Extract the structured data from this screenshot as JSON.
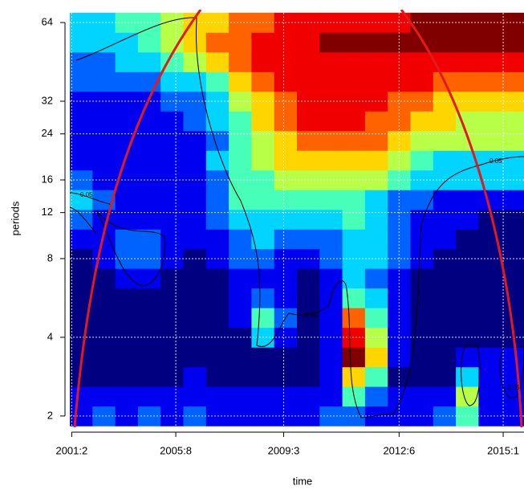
{
  "chart_data": {
    "type": "heatmap",
    "xlabel": "time",
    "ylabel": "periods",
    "xlim": [
      0,
      240
    ],
    "xticks": [
      {
        "value": 1,
        "label": "2001:2"
      },
      {
        "value": 56,
        "label": "2005:8"
      },
      {
        "value": 113,
        "label": "2009:3"
      },
      {
        "value": 174,
        "label": "2012:6"
      },
      {
        "value": 229,
        "label": "2015:1"
      }
    ],
    "ylim": [
      1.81,
      71.7
    ],
    "log_y": true,
    "log_base": 2,
    "yticks": [
      2,
      4,
      8,
      12,
      16,
      24,
      32,
      64
    ],
    "grid": true,
    "colormap": "jet",
    "zlim": [
      0,
      9
    ],
    "contour_label": "0.05",
    "x": [
      6,
      18,
      30,
      42,
      54,
      66,
      78,
      90,
      102,
      114,
      126,
      138,
      150,
      162,
      174,
      186,
      198,
      210,
      222,
      234
    ],
    "y": [
      2,
      2.38,
      2.83,
      3.36,
      4,
      4.76,
      5.66,
      6.73,
      8,
      9.51,
      11.31,
      13.45,
      16,
      19.03,
      22.63,
      26.91,
      32,
      38.05,
      45.25,
      53.82,
      64
    ],
    "z": [
      [
        1,
        2,
        1,
        2,
        1,
        2,
        1,
        1,
        1,
        1,
        1,
        2,
        2,
        1,
        1,
        1,
        2,
        4,
        1,
        1
      ],
      [
        1,
        1,
        1,
        1,
        1,
        1,
        1,
        1,
        1,
        1,
        1,
        1,
        4,
        2,
        1,
        1,
        1,
        5,
        1,
        1
      ],
      [
        0,
        0,
        0,
        0,
        0,
        1,
        0,
        0,
        0,
        0,
        0,
        1,
        6,
        4,
        0,
        0,
        0,
        3,
        1,
        1
      ],
      [
        0,
        0,
        0,
        0,
        0,
        0,
        0,
        0,
        0,
        0,
        0,
        1,
        9,
        6,
        1,
        0,
        0,
        1,
        1,
        1
      ],
      [
        0,
        0,
        0,
        0,
        0,
        0,
        0,
        0,
        3,
        1,
        0,
        1,
        8,
        5,
        1,
        0,
        0,
        0,
        0,
        0
      ],
      [
        0,
        0,
        0,
        0,
        0,
        0,
        0,
        1,
        4,
        2,
        0,
        1,
        7,
        4,
        1,
        0,
        0,
        0,
        0,
        0
      ],
      [
        0,
        0,
        0,
        0,
        0,
        0,
        0,
        1,
        2,
        1,
        0,
        1,
        4,
        3,
        1,
        0,
        0,
        0,
        0,
        0
      ],
      [
        0,
        0,
        1,
        1,
        0,
        0,
        0,
        1,
        1,
        1,
        0,
        1,
        3,
        2,
        1,
        0,
        0,
        0,
        0,
        0
      ],
      [
        0,
        1,
        2,
        2,
        1,
        0,
        1,
        2,
        2,
        1,
        1,
        2,
        3,
        3,
        2,
        1,
        0,
        0,
        0,
        0
      ],
      [
        1,
        1,
        2,
        2,
        1,
        1,
        1,
        2,
        3,
        2,
        2,
        2,
        3,
        3,
        2,
        1,
        1,
        0,
        0,
        0
      ],
      [
        2,
        1,
        1,
        1,
        1,
        1,
        2,
        3,
        3,
        3,
        3,
        3,
        4,
        3,
        2,
        1,
        1,
        1,
        0,
        0
      ],
      [
        3,
        2,
        1,
        1,
        1,
        1,
        2,
        4,
        4,
        4,
        4,
        4,
        4,
        3,
        2,
        2,
        1,
        1,
        1,
        1
      ],
      [
        2,
        1,
        1,
        1,
        1,
        1,
        2,
        4,
        4,
        5,
        5,
        5,
        5,
        5,
        4,
        3,
        3,
        3,
        3,
        3
      ],
      [
        1,
        1,
        1,
        1,
        1,
        1,
        3,
        4,
        5,
        6,
        6,
        6,
        6,
        6,
        5,
        4,
        3,
        3,
        3,
        3
      ],
      [
        1,
        1,
        1,
        1,
        1,
        1,
        2,
        4,
        5,
        6,
        7,
        7,
        7,
        7,
        6,
        5,
        5,
        5,
        5,
        5
      ],
      [
        1,
        1,
        1,
        1,
        1,
        2,
        3,
        4,
        6,
        7,
        8,
        8,
        8,
        7,
        7,
        6,
        6,
        5,
        5,
        5
      ],
      [
        1,
        1,
        1,
        1,
        2,
        2,
        3,
        5,
        6,
        7,
        8,
        8,
        8,
        8,
        7,
        7,
        6,
        6,
        6,
        6
      ],
      [
        2,
        2,
        2,
        2,
        3,
        3,
        4,
        6,
        7,
        8,
        8,
        8,
        8,
        8,
        8,
        8,
        7,
        7,
        7,
        7
      ],
      [
        2,
        2,
        3,
        3,
        4,
        5,
        6,
        7,
        8,
        8,
        8,
        8,
        8,
        8,
        8,
        8,
        8,
        8,
        8,
        8
      ],
      [
        3,
        3,
        3,
        4,
        5,
        6,
        7,
        7,
        8,
        8,
        8,
        9,
        9,
        9,
        9,
        9,
        9,
        9,
        9,
        9
      ],
      [
        3,
        3,
        4,
        4,
        5,
        6,
        6,
        7,
        7,
        8,
        8,
        8,
        8,
        8,
        8,
        9,
        9,
        9,
        9,
        9
      ]
    ]
  }
}
